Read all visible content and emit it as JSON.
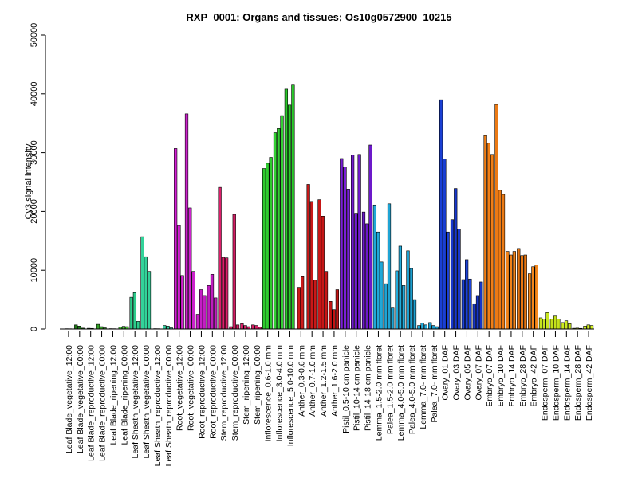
{
  "chart_data": {
    "type": "bar",
    "title": "RXP_0001: Organs and tissues; Os10g0572900_10215",
    "xlabel": "",
    "ylabel": "Cy3 signal intensity",
    "ylim": [
      0,
      50000
    ],
    "yticks": [
      0,
      10000,
      20000,
      30000,
      40000,
      50000
    ],
    "grid": false,
    "groups": [
      {
        "label": "Leaf Blade_vegetative_12:00",
        "color": "#1A1A1A",
        "values": [
          50,
          40
        ]
      },
      {
        "label": "Leaf Blade_vegetative_00:00",
        "color": "#1E7A16",
        "values": [
          700,
          500,
          150
        ]
      },
      {
        "label": "Leaf Blade_reproductive_12:00",
        "color": "#2A8E1F",
        "values": [
          120,
          100
        ]
      },
      {
        "label": "Leaf Blade_reproductive_00:00",
        "color": "#33A126",
        "values": [
          800,
          400,
          200
        ]
      },
      {
        "label": "Leaf Blade_ripening_12:00",
        "color": "#3CB52D",
        "values": [
          60,
          50
        ]
      },
      {
        "label": "Leaf Blade_ripening_00:00",
        "color": "#47C836",
        "values": [
          350,
          450,
          400
        ]
      },
      {
        "label": "Leaf Sheath_vegetative_12:00",
        "color": "#2DCC8C",
        "values": [
          5400,
          6200,
          1300
        ]
      },
      {
        "label": "Leaf Sheath_vegetative_00:00",
        "color": "#33D39A",
        "values": [
          15700,
          12300,
          9800
        ]
      },
      {
        "label": "Leaf Sheath_reproductive_12:00",
        "color": "#2FC896",
        "values": [
          60,
          50
        ]
      },
      {
        "label": "Leaf Sheath_reproductive_00:00",
        "color": "#35CFA0",
        "values": [
          600,
          500,
          200
        ]
      },
      {
        "label": "Root_vegetative_12:00",
        "color": "#D41FD4",
        "values": [
          30700,
          17600,
          9100
        ]
      },
      {
        "label": "Root_vegetative_00:00",
        "color": "#CC22CC",
        "values": [
          36600,
          20600,
          9800
        ]
      },
      {
        "label": "Root_reproductive_12:00",
        "color": "#C51EC5",
        "values": [
          2500,
          6700,
          5700
        ]
      },
      {
        "label": "Root_reproductive_00:00",
        "color": "#BE1CBE",
        "values": [
          7400,
          9300,
          5300
        ]
      },
      {
        "label": "Stem_reproductive_12:00",
        "color": "#DB1F6A",
        "values": [
          24100,
          12200,
          12100
        ]
      },
      {
        "label": "Stem_reproductive_00:00",
        "color": "#D11D62",
        "values": [
          400,
          19500,
          700
        ]
      },
      {
        "label": "Stem_ripening_12:00",
        "color": "#E0226E",
        "values": [
          900,
          600,
          400
        ]
      },
      {
        "label": "Stem_ripening_00:00",
        "color": "#D81E66",
        "values": [
          700,
          600,
          300
        ]
      },
      {
        "label": "Inflorescence_0.6-1.0 mm",
        "color": "#2ECC2E",
        "values": [
          27300,
          28200,
          29200
        ]
      },
      {
        "label": "Inflorescence_3.0-4.0 mm",
        "color": "#33D133",
        "values": [
          33400,
          34100,
          36300
        ]
      },
      {
        "label": "Inflorescence_5.0-10.0 mm",
        "color": "#2BC92B",
        "values": [
          40800,
          38100,
          41500
        ]
      },
      {
        "label": "Anther_0.3-0.6 mm",
        "color": "#CC1A1A",
        "values": [
          7100,
          8900
        ]
      },
      {
        "label": "Anther_0.7-1.0 mm",
        "color": "#C91818",
        "values": [
          24600,
          21700,
          8300
        ]
      },
      {
        "label": "Anther_1.2-1.5 mm",
        "color": "#C61616",
        "values": [
          22000,
          19200,
          9800
        ]
      },
      {
        "label": "Anther_1.6-2.0 mm",
        "color": "#C31414",
        "values": [
          4700,
          3300,
          6700
        ]
      },
      {
        "label": "Pistil_0.5-10 cm panicle",
        "color": "#7A1FD6",
        "values": [
          29000,
          27600,
          23800
        ]
      },
      {
        "label": "Pistil_10-14 cm panicle",
        "color": "#731CD0",
        "values": [
          29600,
          19700,
          29700
        ]
      },
      {
        "label": "Pistil_14-18 cm panicle",
        "color": "#6C19CA",
        "values": [
          19900,
          17900,
          31300
        ]
      },
      {
        "label": "Lemma_1.5-2.0 mm floret",
        "color": "#21A8D8",
        "values": [
          21100,
          16500,
          11400
        ]
      },
      {
        "label": "Palea_1.5-2.0 mm floret",
        "color": "#1FA4D4",
        "values": [
          7700,
          21300,
          3700
        ]
      },
      {
        "label": "Lemma_4.0-5.0 mm floret",
        "color": "#23ACDC",
        "values": [
          9900,
          14100,
          7400
        ]
      },
      {
        "label": "Palea_4.0-5.0 mm floret",
        "color": "#1DA0D0",
        "values": [
          13300,
          10300,
          5000
        ]
      },
      {
        "label": "Lemma_7.0- mm floret",
        "color": "#25B0E0",
        "values": [
          600,
          1000,
          700
        ]
      },
      {
        "label": "Palea_7.0- mm floret",
        "color": "#1B9CCC",
        "values": [
          1100,
          600,
          400
        ]
      },
      {
        "label": "Ovary_01 DAF",
        "color": "#1A3FD4",
        "values": [
          39000,
          28900,
          16500
        ]
      },
      {
        "label": "Ovary_03 DAF",
        "color": "#1838CE",
        "values": [
          18600,
          23900,
          17000
        ]
      },
      {
        "label": "Ovary_05 DAF",
        "color": "#1C42D8",
        "values": [
          8400,
          11800,
          8500
        ]
      },
      {
        "label": "Ovary_07 DAF",
        "color": "#1635C8",
        "values": [
          4300,
          5700,
          8000
        ]
      },
      {
        "label": "Embryo_07 DAF",
        "color": "#F07F17",
        "values": [
          32900,
          31600,
          29700
        ]
      },
      {
        "label": "Embryo_10 DAF",
        "color": "#EC7A14",
        "values": [
          38200,
          23600,
          22900
        ]
      },
      {
        "label": "Embryo_14 DAF",
        "color": "#F28319",
        "values": [
          13200,
          12600,
          13200
        ]
      },
      {
        "label": "Embryo_28 DAF",
        "color": "#E87612",
        "values": [
          13700,
          12500,
          12600
        ]
      },
      {
        "label": "Embryo_42 DAF",
        "color": "#F4871B",
        "values": [
          9400,
          10600,
          10900
        ]
      },
      {
        "label": "Endosperm_07 DAF",
        "color": "#C8E61E",
        "values": [
          1900,
          1700,
          2800
        ]
      },
      {
        "label": "Endosperm_10 DAF",
        "color": "#C3E11B",
        "values": [
          1700,
          2200,
          1700
        ]
      },
      {
        "label": "Endosperm_14 DAF",
        "color": "#CDEB21",
        "values": [
          1100,
          1400,
          900
        ]
      },
      {
        "label": "Endosperm_28 DAF",
        "color": "#BEDC18",
        "values": [
          120,
          150,
          100
        ]
      },
      {
        "label": "Endosperm_42 DAF",
        "color": "#D2F024",
        "values": [
          500,
          700,
          600
        ]
      }
    ]
  }
}
